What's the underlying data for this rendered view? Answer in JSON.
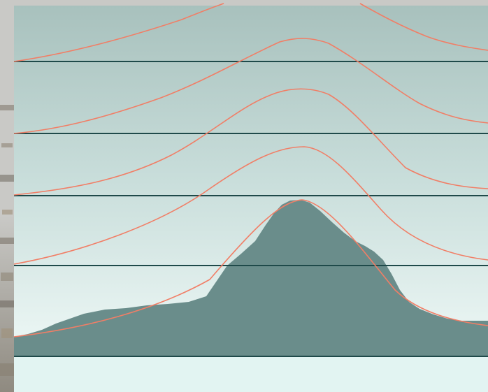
{
  "colors": {
    "photo_backdrop_light": "#c9c9c6",
    "photo_backdrop_dark": "#8f8a80",
    "panel_top": "#a8c1bd",
    "panel_mid": "#c9dedb",
    "panel_bottom": "#eef8f6",
    "baseline_area": "#e2f4f2",
    "terrain_fill": "#6a8d8b",
    "level_line": "#1f4a4a",
    "contour_curve": "#f17e66"
  },
  "diagram": {
    "panel_count": 1,
    "level_line_count": 5,
    "contour_curve_count": 5
  }
}
